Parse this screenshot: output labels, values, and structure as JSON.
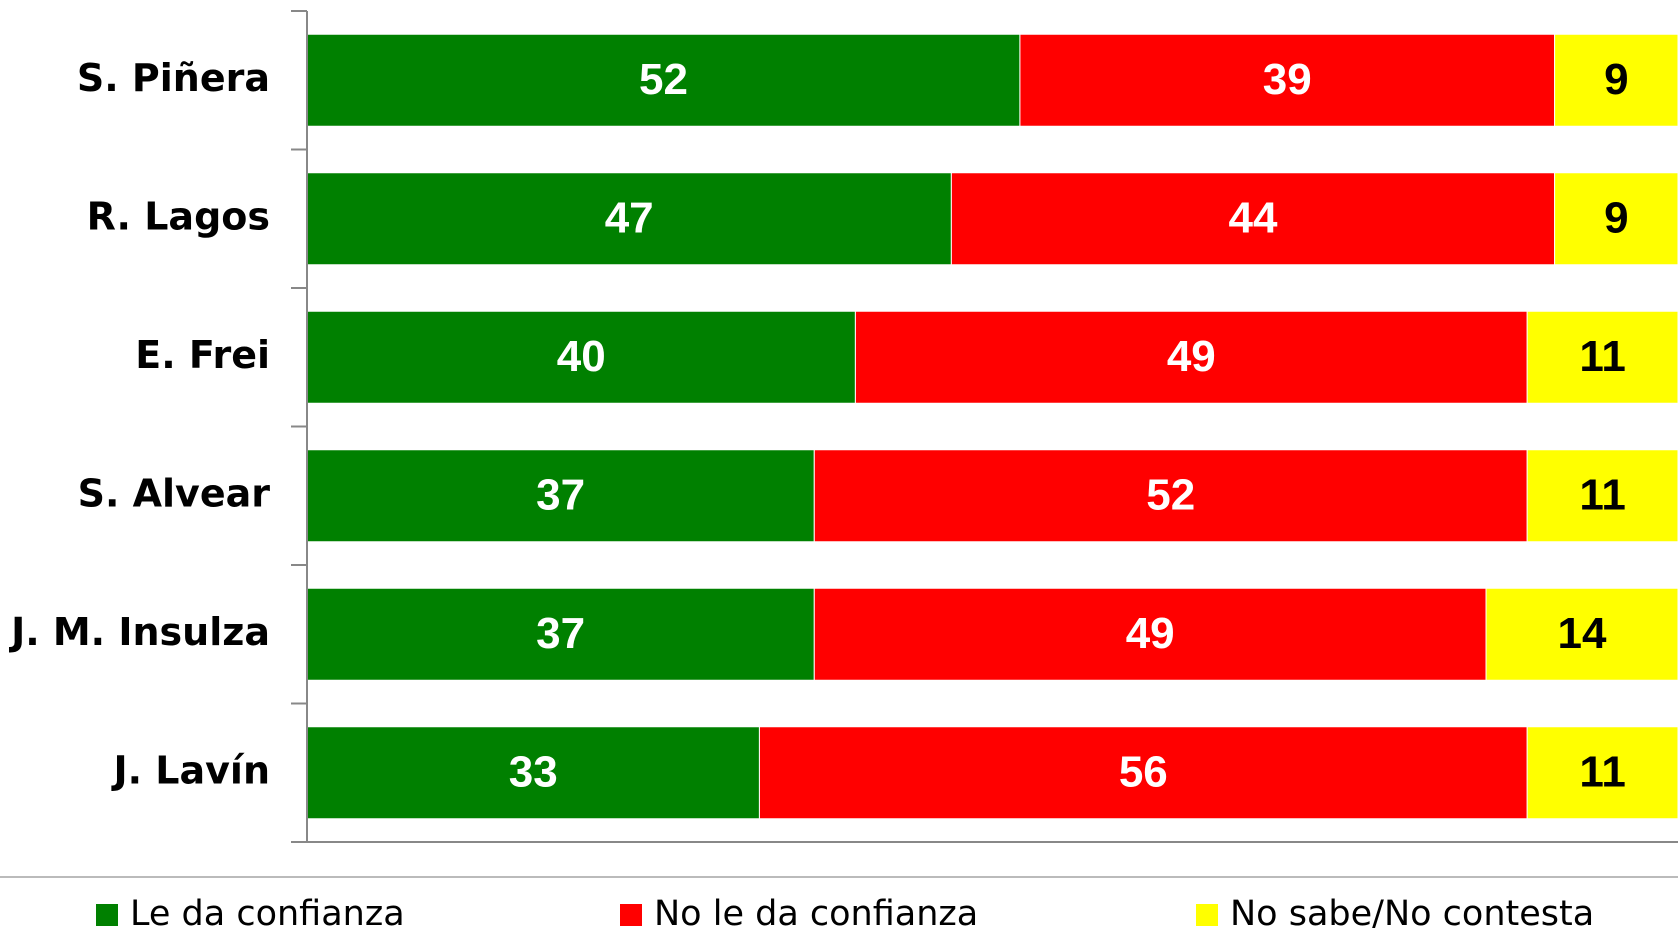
{
  "chart_data": {
    "type": "stacked-barh",
    "categories": [
      "S. Piñera",
      "R. Lagos",
      "E. Frei",
      "S. Alvear",
      "J. M. Insulza",
      "J. Lavín"
    ],
    "series": [
      {
        "name": "Le da confianza",
        "color": "#008000",
        "label_color": "#ffffff",
        "values": [
          52,
          47,
          40,
          37,
          37,
          33
        ]
      },
      {
        "name": "No le da confianza",
        "color": "#ff0000",
        "label_color": "#ffffff",
        "values": [
          39,
          44,
          49,
          52,
          49,
          56
        ]
      },
      {
        "name": "No sabe/No contesta",
        "color": "#ffff00",
        "label_color": "#000000",
        "values": [
          9,
          9,
          11,
          11,
          14,
          11
        ]
      }
    ],
    "xlim": [
      0,
      100
    ],
    "legend": "bottom"
  }
}
